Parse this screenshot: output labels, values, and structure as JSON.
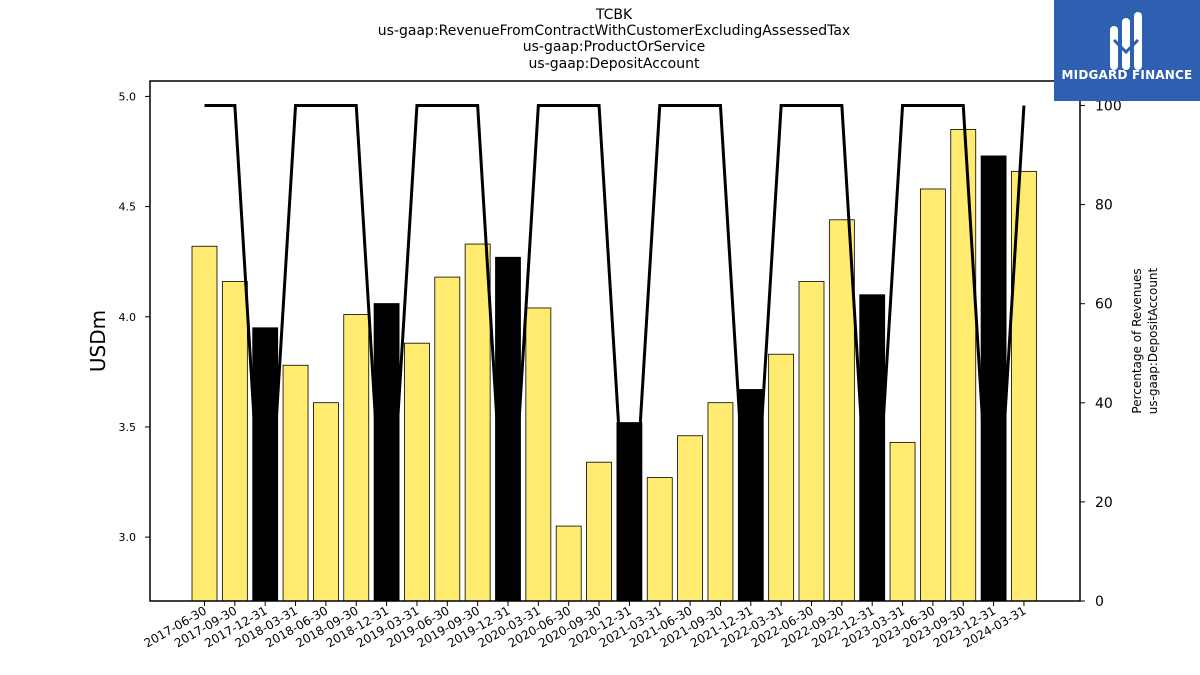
{
  "logo": {
    "name": "MIDGARD FINANCE",
    "color": "#2f5fb0"
  },
  "chart_data": {
    "type": "bar",
    "title_lines": [
      "TCBK",
      "us-gaap:RevenueFromContractWithCustomerExcludingAssessedTax",
      "us-gaap:ProductOrService",
      "us-gaap:DepositAccount"
    ],
    "ylabel": "USDm",
    "y2label": [
      "Percentage of Revenues",
      "us-gaap:DepositAccount"
    ],
    "ylim": [
      2.71,
      5.07
    ],
    "y2lim": [
      0,
      100
    ],
    "yticks": [
      "3.0",
      "3.5",
      "4.0",
      "4.5",
      "5.0"
    ],
    "y2ticks": [
      "0",
      "20",
      "40",
      "60",
      "80",
      "100"
    ],
    "categories": [
      "2017-06-30",
      "2017-09-30",
      "2017-12-31",
      "2018-03-31",
      "2018-06-30",
      "2018-09-30",
      "2018-12-31",
      "2019-03-31",
      "2019-06-30",
      "2019-09-30",
      "2019-12-31",
      "2020-03-31",
      "2020-06-30",
      "2020-09-30",
      "2020-12-31",
      "2021-03-31",
      "2021-06-30",
      "2021-09-30",
      "2021-12-31",
      "2022-03-31",
      "2022-06-30",
      "2022-09-30",
      "2022-12-31",
      "2023-03-31",
      "2023-06-30",
      "2023-09-30",
      "2023-12-31",
      "2024-03-31"
    ],
    "series": [
      {
        "type": "bar",
        "values": [
          4.32,
          4.16,
          3.95,
          3.78,
          3.61,
          4.01,
          4.06,
          3.88,
          4.18,
          4.33,
          4.27,
          4.04,
          3.05,
          3.34,
          3.52,
          3.27,
          3.46,
          3.61,
          3.67,
          3.83,
          4.16,
          4.44,
          4.1,
          3.43,
          4.58,
          4.85,
          4.73,
          4.66
        ],
        "colors": {
          "quarterly": "#ffeb70",
          "year_end": "#000000"
        }
      },
      {
        "type": "line",
        "axis": "right",
        "values": [
          100,
          100,
          0,
          100,
          100,
          100,
          0,
          100,
          100,
          100,
          0,
          100,
          100,
          100,
          0,
          100,
          100,
          100,
          0,
          100,
          100,
          100,
          0,
          100,
          100,
          100,
          0,
          100
        ],
        "color": "#000000"
      }
    ]
  }
}
